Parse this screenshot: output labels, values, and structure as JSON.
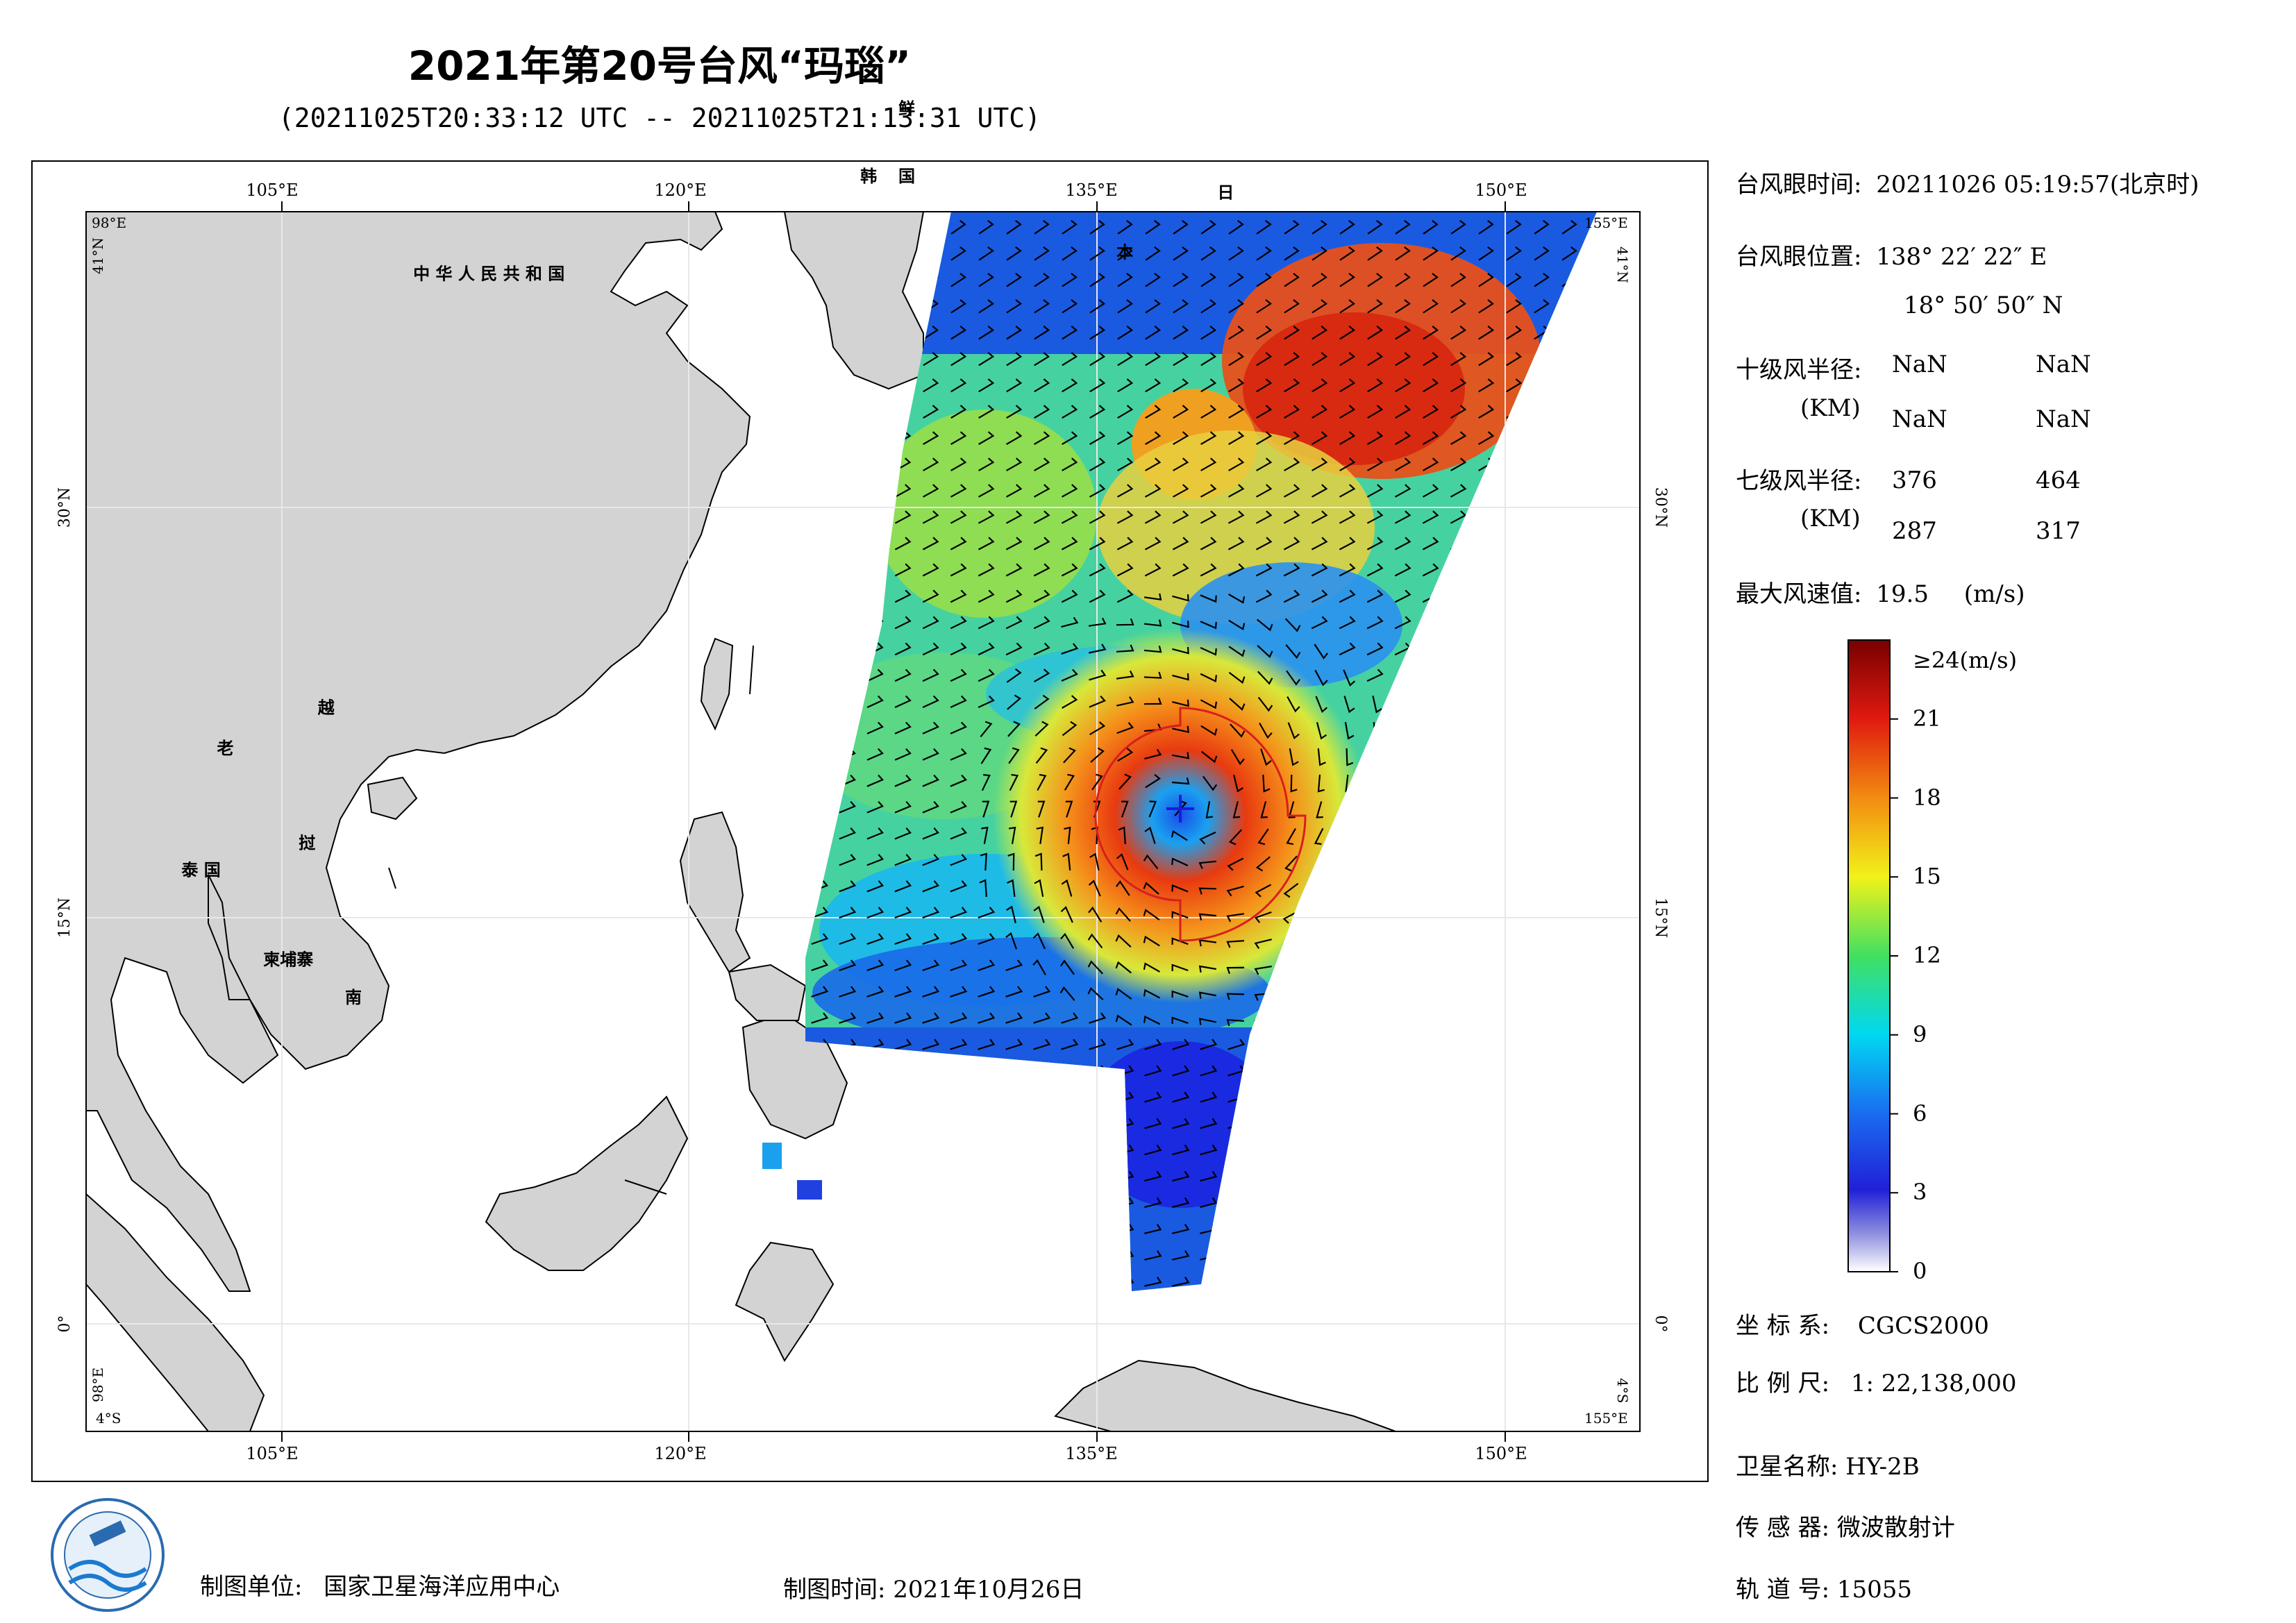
{
  "header": {
    "title": "2021年第20号台风“玛瑙”",
    "subtitle": "(20211025T20:33:12 UTC -- 20211025T21:13:31 UTC)"
  },
  "map": {
    "country_labels": [
      {
        "text": "中 华 人 民 共 和 国",
        "lon": 110,
        "lat": 38.5
      },
      {
        "text": "老",
        "lon": 102.8,
        "lat": 21
      },
      {
        "text": "越",
        "lon": 106.5,
        "lat": 22.5
      },
      {
        "text": "泰 国",
        "lon": 101.5,
        "lat": 16.5
      },
      {
        "text": "挝",
        "lon": 105.8,
        "lat": 17.5
      },
      {
        "text": "柬埔寨",
        "lon": 104.5,
        "lat": 13.2
      },
      {
        "text": "南",
        "lon": 107.5,
        "lat": 11.8
      },
      {
        "text": "鲜",
        "lon": 127.8,
        "lat": 44.6
      },
      {
        "text": "韩",
        "lon": 126.4,
        "lat": 42.1
      },
      {
        "text": "国",
        "lon": 127.8,
        "lat": 42.1
      },
      {
        "text": "日",
        "lon": 139.5,
        "lat": 41.5
      },
      {
        "text": "本",
        "lon": 135.8,
        "lat": 39.3
      }
    ],
    "lon_ticks": [
      "105°E",
      "120°E",
      "135°E",
      "150°E"
    ],
    "lat_ticks": [
      "30°N",
      "15°N",
      "0°"
    ],
    "corner_labels": {
      "top_left": "98°E",
      "top_left_lat": "41°N",
      "top_right": "155°E",
      "top_right_lat": "41°N",
      "bottom_left": "4°S",
      "bottom_left_lon": "98°E",
      "bottom_right": "155°E",
      "bottom_right_lat": "4°S"
    },
    "extent": {
      "lon_min": 98,
      "lon_max": 155,
      "lat_min": -4,
      "lat_max": 41
    },
    "typhoon_center": {
      "lon": 138.373,
      "lat": 18.847
    },
    "colors": {
      "land": "#d3d3d3",
      "ocean": "#ffffff",
      "wind_circle": "#d81e1e"
    }
  },
  "info": {
    "eye_time_label": "台风眼时间:",
    "eye_time_value": "20211026 05:19:57(北京时)",
    "eye_pos_label": "台风眼位置:",
    "eye_pos_lon": "138° 22′ 22″ E",
    "eye_pos_lat": "18° 50′ 50″ N",
    "r10_label": "十级风半径:",
    "r10_unit": "(KM)",
    "r10_values": [
      "NaN",
      "NaN",
      "NaN",
      "NaN"
    ],
    "r7_label": "七级风半径:",
    "r7_unit": "(KM)",
    "r7_values": [
      "376",
      "464",
      "287",
      "317"
    ],
    "max_wind_label": "最大风速值:",
    "max_wind_value": "19.5",
    "max_wind_unit": "(m/s)"
  },
  "colorbar": {
    "min": 0,
    "max": 24,
    "top_label": "≥24(m/s)",
    "tick_labels": [
      "21",
      "18",
      "15",
      "12",
      "9",
      "6",
      "3",
      "0"
    ],
    "tick_values": [
      21,
      18,
      15,
      12,
      9,
      6,
      3,
      0
    ]
  },
  "meta": {
    "crs_label": "坐 标 系:",
    "crs_value": "CGCS2000",
    "scale_label": "比 例 尺:",
    "scale_value": "1: 22,138,000",
    "satellite_label": "卫星名称:",
    "satellite_value": "HY-2B",
    "sensor_label": "传 感 器:",
    "sensor_value": "微波散射计",
    "orbit_label": "轨 道 号:",
    "orbit_value": "15055"
  },
  "footer": {
    "unit_label": "制图单位:",
    "unit_value": "国家卫星海洋应用中心",
    "date_label": "制图时间:",
    "date_value": "2021年10月26日"
  }
}
